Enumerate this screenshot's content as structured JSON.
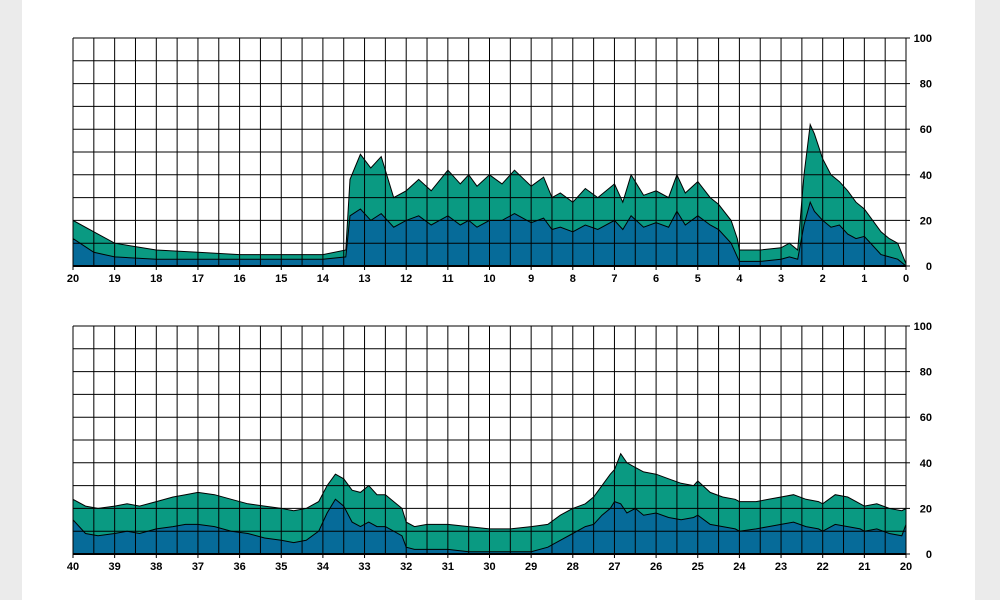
{
  "colors": {
    "background": "#ffffff",
    "outer_background": "#ebebeb",
    "grid": "#000000",
    "series_top": "#0a9a82",
    "series_bottom": "#066b99"
  },
  "chart_data": [
    {
      "type": "area",
      "stacked": false,
      "title": "",
      "xlabel": "",
      "ylabel": "",
      "xlim": [
        20,
        0
      ],
      "ylim": [
        0,
        100
      ],
      "x_ticks": [
        20,
        19,
        18,
        17,
        16,
        15,
        14,
        13,
        12,
        11,
        10,
        9,
        8,
        7,
        6,
        5,
        4,
        3,
        2,
        1,
        0
      ],
      "y_ticks": [
        0,
        20,
        40,
        60,
        80,
        100
      ],
      "grid": true,
      "y_axis_side": "right",
      "x": [
        20,
        19.5,
        19,
        18,
        17,
        16,
        15,
        14.5,
        14,
        13.45,
        13.35,
        13.1,
        12.85,
        12.6,
        12.3,
        12,
        11.7,
        11.4,
        11,
        10.7,
        10.5,
        10.3,
        10,
        9.7,
        9.4,
        9,
        8.7,
        8.5,
        8.3,
        8,
        7.7,
        7.4,
        7,
        6.8,
        6.6,
        6.3,
        6,
        5.7,
        5.5,
        5.3,
        5,
        4.7,
        4.5,
        4.2,
        4.05,
        4,
        3.5,
        3,
        2.8,
        2.6,
        2.45,
        2.3,
        2.2,
        2,
        1.8,
        1.6,
        1.4,
        1.2,
        1,
        0.8,
        0.6,
        0.4,
        0.2,
        0
      ],
      "series": [
        {
          "values": [
            20,
            15,
            10,
            7,
            6,
            5,
            5,
            5,
            5,
            7,
            38,
            49,
            43,
            48,
            30,
            33,
            38,
            33,
            42,
            36,
            40,
            35,
            40,
            36,
            42,
            35,
            39,
            30,
            32,
            28,
            34,
            30,
            36,
            28,
            40,
            31,
            33,
            30,
            40,
            32,
            37,
            30,
            27,
            20,
            12,
            7,
            7,
            8,
            10,
            7,
            40,
            62,
            58,
            47,
            40,
            37,
            33,
            28,
            25,
            20,
            15,
            12,
            10,
            1
          ]
        },
        {
          "values": [
            12,
            6,
            4,
            3,
            3,
            3,
            3,
            3,
            3,
            4,
            22,
            25,
            20,
            23,
            17,
            20,
            22,
            18,
            22,
            18,
            20,
            17,
            20,
            20,
            23,
            19,
            21,
            16,
            17,
            15,
            18,
            16,
            20,
            16,
            22,
            17,
            19,
            17,
            24,
            18,
            22,
            18,
            16,
            10,
            4,
            2,
            2,
            3,
            4,
            3,
            18,
            28,
            24,
            20,
            17,
            18,
            14,
            12,
            13,
            9,
            5,
            4,
            3,
            0
          ]
        }
      ]
    },
    {
      "type": "area",
      "stacked": false,
      "title": "",
      "xlabel": "",
      "ylabel": "",
      "xlim": [
        40,
        20
      ],
      "ylim": [
        0,
        100
      ],
      "x_ticks": [
        40,
        39,
        38,
        37,
        36,
        35,
        34,
        33,
        32,
        31,
        30,
        29,
        28,
        27,
        26,
        25,
        24,
        23,
        22,
        21,
        20
      ],
      "y_ticks": [
        0,
        20,
        40,
        60,
        80,
        100
      ],
      "grid": true,
      "y_axis_side": "right",
      "x": [
        40,
        39.7,
        39.4,
        39,
        38.7,
        38.4,
        38,
        37.6,
        37.3,
        37,
        36.6,
        36.2,
        35.8,
        35.4,
        35,
        34.7,
        34.4,
        34.1,
        33.9,
        33.7,
        33.5,
        33.3,
        33.1,
        32.9,
        32.7,
        32.5,
        32.3,
        32.1,
        32,
        31.8,
        31.5,
        31,
        30.5,
        30,
        29.5,
        29,
        28.6,
        28.3,
        28,
        27.7,
        27.5,
        27.3,
        27.1,
        27,
        26.85,
        26.7,
        26.5,
        26.3,
        26,
        25.7,
        25.4,
        25.1,
        25,
        24.7,
        24.4,
        24.1,
        24,
        23.6,
        23.3,
        23,
        22.7,
        22.4,
        22.1,
        22,
        21.7,
        21.4,
        21.1,
        21,
        20.7,
        20.4,
        20.1,
        20
      ],
      "series": [
        {
          "values": [
            24,
            21,
            20,
            21,
            22,
            21,
            23,
            25,
            26,
            27,
            26,
            24,
            22,
            21,
            20,
            19,
            20,
            23,
            30,
            35,
            33,
            28,
            27,
            30,
            26,
            26,
            23,
            20,
            14,
            12,
            13,
            13,
            12,
            11,
            11,
            12,
            13,
            17,
            20,
            22,
            25,
            30,
            35,
            37,
            44,
            40,
            38,
            36,
            35,
            33,
            31,
            30,
            32,
            27,
            25,
            24,
            23,
            23,
            24,
            25,
            26,
            24,
            23,
            22,
            26,
            25,
            22,
            21,
            22,
            20,
            19,
            20
          ]
        },
        {
          "values": [
            15,
            9,
            8,
            9,
            10,
            9,
            11,
            12,
            13,
            13,
            12,
            10,
            9,
            7,
            6,
            5,
            6,
            10,
            18,
            24,
            21,
            14,
            12,
            14,
            12,
            12,
            10,
            8,
            3,
            2,
            2,
            2,
            1,
            1,
            1,
            1,
            3,
            6,
            9,
            12,
            13,
            17,
            20,
            23,
            22,
            18,
            20,
            17,
            18,
            16,
            15,
            16,
            17,
            13,
            12,
            11,
            10,
            11,
            12,
            13,
            14,
            12,
            11,
            10,
            13,
            12,
            11,
            10,
            11,
            9,
            8,
            13
          ]
        }
      ]
    }
  ]
}
